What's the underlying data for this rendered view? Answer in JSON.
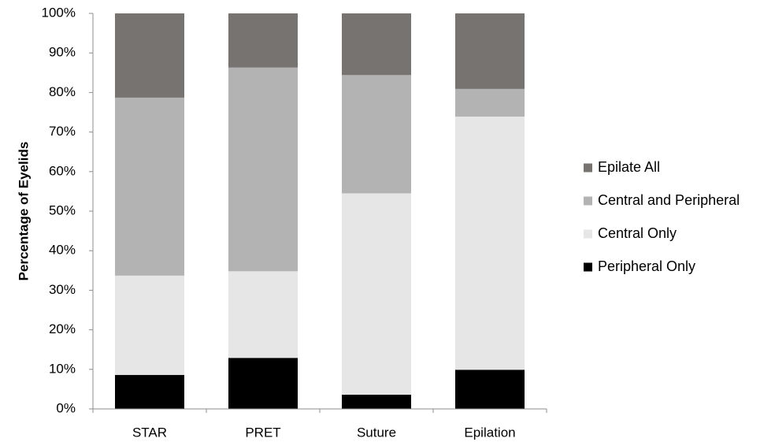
{
  "chart_data": {
    "type": "bar",
    "stacked": true,
    "title": "",
    "xlabel": "",
    "ylabel": "Percentage of Eyelids",
    "ylim": [
      0,
      100
    ],
    "y_tick_labels": [
      "0%",
      "10%",
      "20%",
      "30%",
      "40%",
      "50%",
      "60%",
      "70%",
      "80%",
      "90%",
      "100%"
    ],
    "categories": [
      "STAR",
      "PRET",
      "Suture",
      "Epilation"
    ],
    "series": [
      {
        "name": "Peripheral Only",
        "color": "#000000",
        "values": [
          8.6,
          12.9,
          3.6,
          9.9
        ]
      },
      {
        "name": "Central Only",
        "color": "#e6e6e6",
        "values": [
          25.1,
          21.9,
          50.9,
          64.0
        ]
      },
      {
        "name": "Central and Peripheral",
        "color": "#b3b3b3",
        "values": [
          45.0,
          51.5,
          29.9,
          7.0
        ]
      },
      {
        "name": "Epilate All",
        "color": "#777371",
        "values": [
          21.3,
          13.7,
          15.6,
          19.1
        ]
      }
    ],
    "legend_position": "right",
    "legend_order": [
      "Epilate All",
      "Central and Peripheral",
      "Central Only",
      "Peripheral Only"
    ],
    "grid": false
  }
}
